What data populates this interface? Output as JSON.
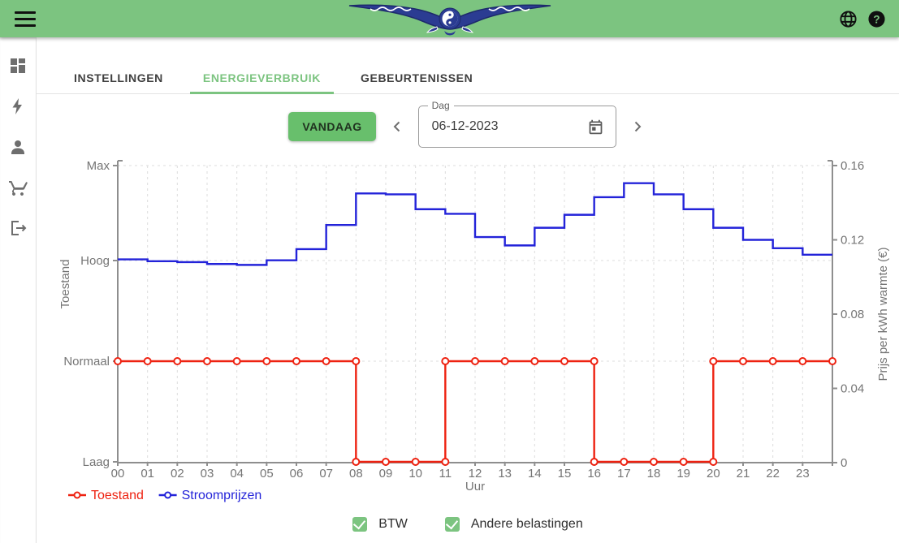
{
  "header": {
    "logo": "phoenix-yin-yang-logo",
    "bar_color": "#7cc480",
    "icons": [
      "menu-icon",
      "globe-icon",
      "help-icon"
    ]
  },
  "sidebar": {
    "items": [
      {
        "icon": "dashboard-icon"
      },
      {
        "icon": "bolt-icon"
      },
      {
        "icon": "person-icon"
      },
      {
        "icon": "cart-icon"
      },
      {
        "icon": "logout-icon"
      }
    ]
  },
  "tabs": {
    "items": [
      {
        "label": "INSTELLINGEN",
        "active": false
      },
      {
        "label": "ENERGIEVERBRUIK",
        "active": true
      },
      {
        "label": "GEBEURTENISSEN",
        "active": false
      }
    ]
  },
  "controls": {
    "today_button": "VANDAAG",
    "prev_icon": "chevron-left-icon",
    "next_icon": "chevron-right-icon",
    "date_field": {
      "label": "Dag",
      "value": "06-12-2023",
      "icon": "calendar-icon"
    }
  },
  "chart_data": {
    "type": "line",
    "xlabel": "Uur",
    "x_tick_labels": [
      "00",
      "01",
      "02",
      "03",
      "04",
      "05",
      "06",
      "07",
      "08",
      "09",
      "10",
      "11",
      "12",
      "13",
      "14",
      "15",
      "16",
      "17",
      "18",
      "19",
      "20",
      "21",
      "22",
      "23"
    ],
    "left_axis": {
      "title": "Toestand",
      "categories": [
        "Laag",
        "Normaal",
        "Hoog",
        "Max"
      ]
    },
    "right_axis": {
      "title": "Prijs per kWh warmte (€)",
      "ticks": [
        0,
        0.04,
        0.08,
        0.12,
        0.16
      ],
      "min": 0,
      "max": 0.16
    },
    "grid": "dashed",
    "legend_position": "bottom-left",
    "series": [
      {
        "name": "Toestand",
        "color": "#ee2211",
        "axis": "left",
        "style": "step-with-markers",
        "segments": [
          {
            "from": 0,
            "to": 8,
            "value": "Normaal"
          },
          {
            "from": 8,
            "to": 11,
            "value": "Laag"
          },
          {
            "from": 11,
            "to": 16,
            "value": "Normaal"
          },
          {
            "from": 16,
            "to": 20,
            "value": "Laag"
          },
          {
            "from": 20,
            "to": 24,
            "value": "Normaal"
          }
        ]
      },
      {
        "name": "Stroomprijzen",
        "color": "#2323d9",
        "axis": "right",
        "style": "step",
        "values": [
          0.1095,
          0.1085,
          0.108,
          0.107,
          0.1065,
          0.109,
          0.115,
          0.128,
          0.145,
          0.1445,
          0.1365,
          0.134,
          0.1215,
          0.117,
          0.1265,
          0.1335,
          0.143,
          0.1505,
          0.1445,
          0.1365,
          0.1265,
          0.12,
          0.1155,
          0.112
        ]
      }
    ]
  },
  "filters": {
    "items": [
      {
        "label": "BTW",
        "checked": true
      },
      {
        "label": "Andere belastingen",
        "checked": true
      }
    ]
  }
}
